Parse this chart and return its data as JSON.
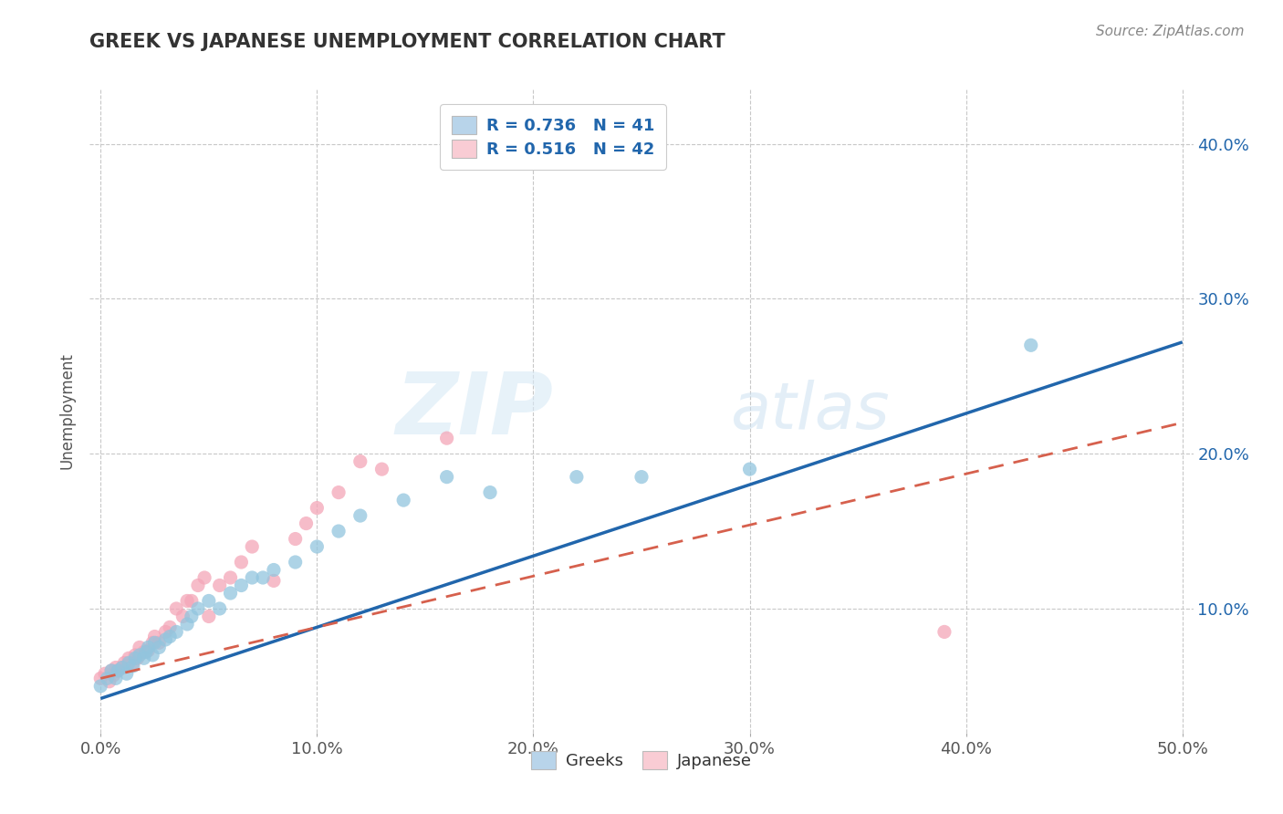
{
  "title": "GREEK VS JAPANESE UNEMPLOYMENT CORRELATION CHART",
  "source_text": "Source: ZipAtlas.com",
  "ylabel": "Unemployment",
  "xlim": [
    -0.005,
    0.505
  ],
  "ylim": [
    0.02,
    0.435
  ],
  "xtick_labels": [
    "0.0%",
    "",
    "",
    "",
    "",
    "",
    "",
    "",
    "",
    "",
    "10.0%",
    "",
    "",
    "",
    "",
    "",
    "",
    "",
    "",
    "",
    "20.0%",
    "",
    "",
    "",
    "",
    "",
    "",
    "",
    "",
    "",
    "30.0%",
    "",
    "",
    "",
    "",
    "",
    "",
    "",
    "",
    "",
    "40.0%",
    "",
    "",
    "",
    "",
    "",
    "",
    "",
    "",
    "",
    "50.0%"
  ],
  "xtick_vals": [
    0.0,
    0.01,
    0.02,
    0.03,
    0.04,
    0.05,
    0.06,
    0.07,
    0.08,
    0.09,
    0.1,
    0.11,
    0.12,
    0.13,
    0.14,
    0.15,
    0.16,
    0.17,
    0.18,
    0.19,
    0.2,
    0.21,
    0.22,
    0.23,
    0.24,
    0.25,
    0.26,
    0.27,
    0.28,
    0.29,
    0.3,
    0.31,
    0.32,
    0.33,
    0.34,
    0.35,
    0.36,
    0.37,
    0.38,
    0.39,
    0.4,
    0.41,
    0.42,
    0.43,
    0.44,
    0.45,
    0.46,
    0.47,
    0.48,
    0.49,
    0.5
  ],
  "xgrid_vals": [
    0.0,
    0.1,
    0.2,
    0.3,
    0.4,
    0.5
  ],
  "xlabel_vals": [
    0.0,
    0.1,
    0.2,
    0.3,
    0.4,
    0.5
  ],
  "xlabel_labels": [
    "0.0%",
    "10.0%",
    "20.0%",
    "30.0%",
    "40.0%",
    "50.0%"
  ],
  "ytick_vals": [
    0.1,
    0.2,
    0.3,
    0.4
  ],
  "ytick_labels_right": [
    "10.0%",
    "20.0%",
    "30.0%",
    "40.0%"
  ],
  "blue_scatter_color": "#92c5de",
  "pink_scatter_color": "#f4a6b8",
  "blue_line_color": "#2166ac",
  "pink_line_color": "#d6604d",
  "pink_line_style": "--",
  "legend_blue_color": "#b8d4ea",
  "legend_pink_color": "#f9ccd4",
  "R_greek": 0.736,
  "N_greek": 41,
  "R_japanese": 0.516,
  "N_japanese": 42,
  "watermark_zip": "ZIP",
  "watermark_atlas": "atlas",
  "background_color": "#ffffff",
  "grid_color": "#c8c8c8",
  "title_color": "#333333",
  "right_axis_color": "#2166ac",
  "greek_scatter_x": [
    0.0,
    0.003,
    0.005,
    0.007,
    0.008,
    0.01,
    0.012,
    0.013,
    0.015,
    0.016,
    0.018,
    0.02,
    0.021,
    0.022,
    0.024,
    0.025,
    0.027,
    0.03,
    0.032,
    0.035,
    0.04,
    0.042,
    0.045,
    0.05,
    0.055,
    0.06,
    0.065,
    0.07,
    0.075,
    0.08,
    0.09,
    0.1,
    0.11,
    0.12,
    0.14,
    0.16,
    0.18,
    0.22,
    0.25,
    0.3,
    0.43
  ],
  "greek_scatter_y": [
    0.05,
    0.055,
    0.06,
    0.055,
    0.06,
    0.062,
    0.058,
    0.065,
    0.063,
    0.068,
    0.07,
    0.068,
    0.072,
    0.075,
    0.07,
    0.078,
    0.075,
    0.08,
    0.082,
    0.085,
    0.09,
    0.095,
    0.1,
    0.105,
    0.1,
    0.11,
    0.115,
    0.12,
    0.12,
    0.125,
    0.13,
    0.14,
    0.15,
    0.16,
    0.17,
    0.185,
    0.175,
    0.185,
    0.185,
    0.19,
    0.27
  ],
  "japanese_scatter_x": [
    0.0,
    0.002,
    0.004,
    0.005,
    0.006,
    0.007,
    0.008,
    0.01,
    0.011,
    0.012,
    0.013,
    0.015,
    0.016,
    0.017,
    0.018,
    0.02,
    0.022,
    0.024,
    0.025,
    0.027,
    0.03,
    0.032,
    0.035,
    0.038,
    0.04,
    0.042,
    0.045,
    0.048,
    0.05,
    0.055,
    0.06,
    0.065,
    0.07,
    0.08,
    0.09,
    0.095,
    0.1,
    0.11,
    0.12,
    0.13,
    0.16,
    0.39
  ],
  "japanese_scatter_y": [
    0.055,
    0.058,
    0.053,
    0.06,
    0.057,
    0.062,
    0.06,
    0.062,
    0.065,
    0.063,
    0.068,
    0.065,
    0.07,
    0.068,
    0.075,
    0.072,
    0.073,
    0.078,
    0.082,
    0.078,
    0.085,
    0.088,
    0.1,
    0.095,
    0.105,
    0.105,
    0.115,
    0.12,
    0.095,
    0.115,
    0.12,
    0.13,
    0.14,
    0.118,
    0.145,
    0.155,
    0.165,
    0.175,
    0.195,
    0.19,
    0.21,
    0.085
  ],
  "greek_line_x0": 0.0,
  "greek_line_y0": 0.042,
  "greek_line_x1": 0.5,
  "greek_line_y1": 0.272,
  "japanese_line_x0": 0.0,
  "japanese_line_y0": 0.055,
  "japanese_line_x1": 0.5,
  "japanese_line_y1": 0.22
}
